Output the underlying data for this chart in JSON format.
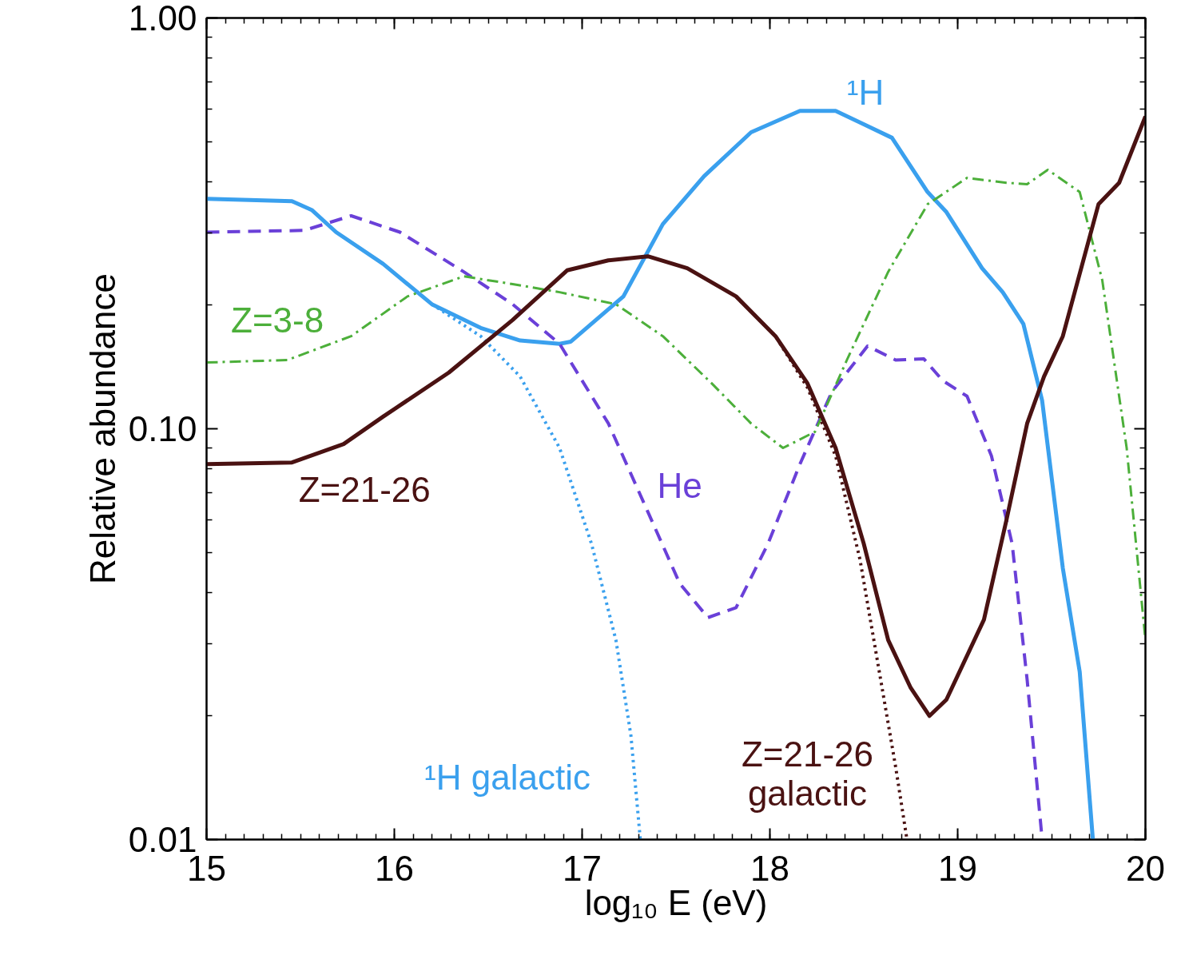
{
  "chart_data": {
    "type": "line",
    "xlabel": "log₁₀ E (eV)",
    "ylabel": "Relative abundance",
    "log": "y",
    "xlim": [
      15,
      20
    ],
    "ylim": [
      0.01,
      1
    ],
    "xticks": [
      15,
      16,
      17,
      18,
      19,
      20
    ],
    "yticks": [
      {
        "value": 0.01,
        "label": "0.01"
      },
      {
        "value": 0.1,
        "label": "0.10"
      },
      {
        "value": 1,
        "label": "1.00"
      }
    ],
    "grid": false,
    "marker": "none",
    "series": [
      {
        "name": "¹H",
        "color": "#3aa0ee",
        "line_style": "solid",
        "x": [
          15,
          15.455,
          15.56,
          15.69,
          15.94,
          16.2,
          16.46,
          16.67,
          16.88,
          16.94,
          17.22,
          17.43,
          17.65,
          17.9,
          18.16,
          18.35,
          18.5,
          18.65,
          18.84,
          18.94,
          19.13,
          19.24,
          19.35,
          19.45,
          19.56,
          19.65,
          19.72
        ],
        "values": [
          0.363,
          0.358,
          0.341,
          0.301,
          0.252,
          0.201,
          0.176,
          0.164,
          0.161,
          0.163,
          0.21,
          0.315,
          0.412,
          0.527,
          0.594,
          0.594,
          0.551,
          0.511,
          0.377,
          0.337,
          0.246,
          0.215,
          0.18,
          0.117,
          0.0458,
          0.0256,
          0.01
        ]
      },
      {
        "name": "¹H galactic",
        "color": "#3aa0ee",
        "line_style": "dotted",
        "x": [
          16.2,
          16.46,
          16.67,
          16.88,
          17.05,
          17.18,
          17.26,
          17.31
        ],
        "values": [
          0.201,
          0.168,
          0.134,
          0.0898,
          0.0525,
          0.0306,
          0.0179,
          0.01
        ]
      },
      {
        "name": "He",
        "color": "#6a40d8",
        "line_style": "dashed",
        "x": [
          15,
          15.52,
          15.77,
          16.03,
          16.37,
          16.63,
          16.88,
          17.14,
          17.35,
          17.52,
          17.67,
          17.82,
          17.99,
          18.16,
          18.33,
          18.52,
          18.67,
          18.82,
          18.92,
          19.05,
          19.18,
          19.29,
          19.37,
          19.45
        ],
        "values": [
          0.301,
          0.304,
          0.33,
          0.301,
          0.241,
          0.201,
          0.161,
          0.103,
          0.0628,
          0.042,
          0.0347,
          0.0367,
          0.0525,
          0.082,
          0.123,
          0.159,
          0.147,
          0.148,
          0.131,
          0.12,
          0.0859,
          0.0525,
          0.0245,
          0.01
        ]
      },
      {
        "name": "Z=3-8",
        "color": "#4caf3a",
        "line_style": "dashdot",
        "x": [
          15,
          15.43,
          15.77,
          16.07,
          16.37,
          16.63,
          16.88,
          17.18,
          17.43,
          17.69,
          17.9,
          18.07,
          18.24,
          18.41,
          18.63,
          18.84,
          19.05,
          19.26,
          19.37,
          19.48,
          19.65,
          19.77,
          19.9,
          20
        ],
        "values": [
          0.145,
          0.147,
          0.168,
          0.21,
          0.235,
          0.225,
          0.215,
          0.201,
          0.168,
          0.129,
          0.103,
          0.0898,
          0.0983,
          0.147,
          0.241,
          0.352,
          0.408,
          0.397,
          0.394,
          0.427,
          0.377,
          0.23,
          0.0898,
          0.0306
        ]
      },
      {
        "name": "Z=21-26",
        "color": "#4a1212",
        "line_style": "solid",
        "x": [
          15,
          15.455,
          15.73,
          15.94,
          16.29,
          16.63,
          16.92,
          17.14,
          17.35,
          17.56,
          17.82,
          18.03,
          18.2,
          18.35,
          18.5,
          18.63,
          18.75,
          18.85,
          18.94,
          19.14,
          19.26,
          19.37,
          19.46,
          19.56,
          19.75,
          19.86,
          20
        ],
        "values": [
          0.082,
          0.0828,
          0.0918,
          0.107,
          0.137,
          0.184,
          0.243,
          0.257,
          0.263,
          0.246,
          0.21,
          0.168,
          0.129,
          0.0898,
          0.0525,
          0.0306,
          0.0234,
          0.02,
          0.0219,
          0.0343,
          0.06,
          0.103,
          0.134,
          0.168,
          0.352,
          0.397,
          0.576
        ]
      },
      {
        "name": "Z=21-26 galactic",
        "color": "#4a1212",
        "line_style": "dotted",
        "x": [
          17.82,
          18.03,
          18.2,
          18.35,
          18.48,
          18.59,
          18.67,
          18.73
        ],
        "values": [
          0.21,
          0.168,
          0.126,
          0.0859,
          0.048,
          0.0245,
          0.015,
          0.01
        ]
      }
    ]
  }
}
